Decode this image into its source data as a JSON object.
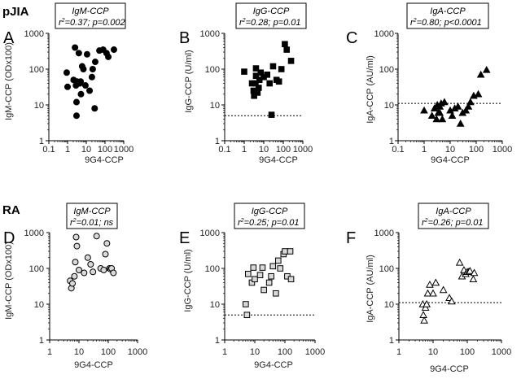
{
  "groups": [
    "pJIA",
    "RA"
  ],
  "chart_data": [
    {
      "type": "scatter",
      "group": "pJIA",
      "panel": "A",
      "row": 0,
      "col": 0,
      "title": "IgM-CCP",
      "stats": {
        "r2": "0.37",
        "p": "p=0.002"
      },
      "xlabel": "9G4-CCP",
      "ylabel": "IgM-CCP (ODx100)",
      "xscale": "log",
      "yscale": "log",
      "xlim": [
        0.1,
        1000
      ],
      "ylim": [
        1,
        1000
      ],
      "xticks": [
        "0.1",
        "1",
        "10",
        "100",
        "1000"
      ],
      "yticks": [
        "1",
        "10",
        "100",
        "1000"
      ],
      "marker": "circle",
      "filled": true,
      "cutoff": null,
      "x": [
        0.9,
        1.0,
        2.1,
        2.5,
        2.8,
        3.0,
        3.0,
        3.2,
        4.0,
        4.5,
        5.0,
        5.2,
        6.0,
        7.0,
        9.0,
        11.0,
        15.0,
        20.0,
        22.0,
        28.0,
        30.0,
        50.0,
        80.0,
        120.0,
        150.0,
        300.0
      ],
      "y": [
        80,
        32,
        50,
        400,
        35,
        5,
        12,
        45,
        280,
        40,
        45,
        20,
        120,
        100,
        35,
        260,
        25,
        60,
        100,
        8,
        160,
        330,
        350,
        280,
        220,
        350
      ]
    },
    {
      "type": "scatter",
      "group": "pJIA",
      "panel": "B",
      "row": 0,
      "col": 1,
      "title": "IgG-CCP",
      "stats": {
        "r2": "0.28",
        "p": "p=0.01"
      },
      "xlabel": "9G4-CCP",
      "ylabel": "IgG-CCP (U/ml)",
      "xscale": "log",
      "yscale": "log",
      "xlim": [
        0.1,
        1000
      ],
      "ylim": [
        1,
        1000
      ],
      "xticks": [
        "0.1",
        "1",
        "10",
        "100",
        "1000"
      ],
      "yticks": [
        "1",
        "10",
        "100",
        "1000"
      ],
      "marker": "square",
      "filled": true,
      "cutoff": 5,
      "x": [
        1.0,
        2.5,
        3.0,
        3.2,
        3.8,
        4.0,
        4.0,
        4.8,
        5.5,
        6.0,
        7.0,
        10.0,
        15.0,
        20.0,
        25.0,
        30.0,
        45.0,
        60.0,
        80.0,
        120.0,
        150.0,
        250.0
      ],
      "y": [
        85,
        40,
        25,
        18,
        40,
        65,
        105,
        22,
        30,
        50,
        80,
        60,
        70,
        40,
        5.3,
        120,
        50,
        45,
        100,
        500,
        350,
        170
      ]
    },
    {
      "type": "scatter",
      "group": "pJIA",
      "panel": "C",
      "row": 0,
      "col": 2,
      "title": "IgA-CCP",
      "stats": {
        "r2": "0.80",
        "p": "p<0.0001"
      },
      "xlabel": "9G4-CCP",
      "ylabel": "IgA-CCP (AU/ml)",
      "xscale": "log",
      "yscale": "log",
      "xlim": [
        0.1,
        1000
      ],
      "ylim": [
        1,
        1000
      ],
      "xticks": [
        "0.1",
        "1",
        "10",
        "100",
        "1000"
      ],
      "yticks": [
        "1",
        "10",
        "100",
        "1000"
      ],
      "marker": "triangle",
      "filled": true,
      "cutoff": 11,
      "x": [
        1.0,
        2.0,
        2.5,
        3.0,
        3.2,
        3.5,
        4.0,
        4.0,
        4.5,
        5.0,
        6.0,
        10.0,
        12.0,
        15.0,
        20.0,
        25.0,
        30.0,
        40.0,
        50.0,
        60.0,
        80.0,
        120.0,
        150.0,
        250.0
      ],
      "y": [
        7,
        5,
        8,
        4,
        10,
        6,
        6,
        9,
        11,
        4,
        12,
        7,
        5,
        8,
        9,
        3,
        6,
        7,
        9,
        12,
        18,
        20,
        70,
        95
      ]
    },
    {
      "type": "scatter",
      "group": "RA",
      "panel": "D",
      "row": 1,
      "col": 0,
      "title": "IgM-CCP",
      "stats": {
        "r2": "0.01",
        "p": "ns"
      },
      "xlabel": "9G4-CCP",
      "ylabel": "IgM-CCP (ODx100)",
      "xscale": "log",
      "yscale": "log",
      "xlim": [
        1,
        1000
      ],
      "ylim": [
        1,
        1000
      ],
      "xticks": [
        "1",
        "10",
        "100",
        "1000"
      ],
      "yticks": [
        "1",
        "10",
        "100",
        "1000"
      ],
      "marker": "circle",
      "filled": false,
      "cutoff": null,
      "x": [
        5.0,
        5.5,
        6.0,
        7.0,
        7.5,
        8.0,
        8.5,
        10.0,
        15.0,
        20.0,
        25.0,
        30.0,
        40.0,
        55.0,
        70.0,
        80.0,
        90.0,
        110.0,
        120.0,
        130.0,
        150.0
      ],
      "y": [
        45,
        28,
        38,
        60,
        150,
        750,
        420,
        90,
        75,
        200,
        130,
        80,
        800,
        100,
        90,
        250,
        500,
        100,
        95,
        100,
        75
      ]
    },
    {
      "type": "scatter",
      "group": "RA",
      "panel": "E",
      "row": 1,
      "col": 1,
      "title": "IgG-CCP",
      "stats": {
        "r2": "0.25",
        "p": "p=0.01"
      },
      "xlabel": "9G4-CCP",
      "ylabel": "IgG-CCP (U/ml)",
      "xscale": "log",
      "yscale": "log",
      "xlim": [
        1,
        1000
      ],
      "ylim": [
        1,
        1000
      ],
      "xticks": [
        "1",
        "10",
        "100",
        "1000"
      ],
      "yticks": [
        "1",
        "10",
        "100",
        "1000"
      ],
      "marker": "square",
      "filled": false,
      "cutoff": 5,
      "x": [
        5.0,
        5.5,
        6.0,
        8.0,
        9.0,
        10.0,
        15.0,
        18.0,
        20.0,
        30.0,
        35.0,
        40.0,
        50.0,
        60.0,
        70.0,
        90.0,
        100.0,
        120.0,
        150.0,
        160.0
      ],
      "y": [
        10,
        5,
        70,
        40,
        105,
        50,
        65,
        105,
        25,
        40,
        60,
        115,
        20,
        165,
        100,
        250,
        300,
        60,
        300,
        50
      ]
    },
    {
      "type": "scatter",
      "group": "RA",
      "panel": "F",
      "row": 1,
      "col": 2,
      "title": "IgA-CCP",
      "stats": {
        "r2": "0.26",
        "p": "p=0.01"
      },
      "xlabel": "9G4-CCP",
      "ylabel": "IgA-CCP (AU/ml)",
      "xscale": "log",
      "yscale": "log",
      "xlim": [
        1,
        1000
      ],
      "ylim": [
        1,
        1000
      ],
      "xticks": [
        "1",
        "10",
        "100",
        "1000"
      ],
      "yticks": [
        "1",
        "10",
        "100",
        "1000"
      ],
      "marker": "triangle",
      "filled": false,
      "cutoff": 11,
      "x": [
        5.0,
        5.2,
        5.5,
        6.0,
        6.5,
        7.0,
        8.0,
        10.0,
        12.0,
        20.0,
        30.0,
        35.0,
        60.0,
        70.0,
        80.0,
        90.0,
        100.0,
        110.0,
        120.0,
        150.0,
        160.0
      ],
      "y": [
        10,
        5,
        3.5,
        8,
        10,
        20,
        35,
        20,
        40,
        25,
        15,
        12,
        145,
        60,
        90,
        70,
        80,
        80,
        85,
        50,
        75
      ]
    }
  ]
}
